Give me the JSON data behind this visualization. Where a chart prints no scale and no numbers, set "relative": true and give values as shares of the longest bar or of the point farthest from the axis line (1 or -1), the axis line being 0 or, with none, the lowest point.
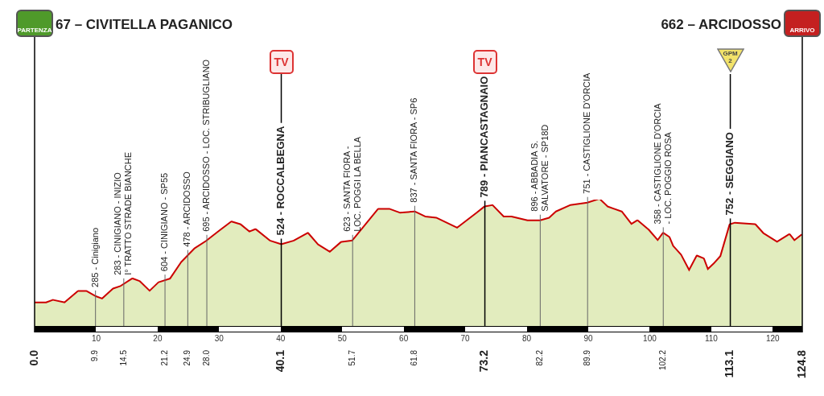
{
  "chart_data": {
    "type": "area",
    "relative": true,
    "marker": "none",
    "legend": false,
    "grid": false,
    "x": [
      0,
      1.9,
      3.0,
      4.9,
      7.1,
      8.4,
      9.9,
      11.0,
      12.8,
      14.0,
      15.9,
      17.0,
      18.7,
      20.2,
      22.1,
      23.9,
      26.1,
      28.0,
      30.1,
      32.0,
      33.4,
      34.9,
      35.9,
      38.2,
      40.1,
      42.2,
      44.4,
      46.0,
      48.0,
      49.9,
      51.7,
      55.9,
      57.7,
      59.4,
      61.8,
      63.5,
      65.3,
      68.7,
      71.9,
      73.2,
      74.4,
      76.2,
      77.5,
      80.1,
      82.2,
      83.7,
      84.8,
      87.1,
      89.9,
      91.8,
      93.1,
      95.4,
      97.0,
      98.0,
      99.7,
      101.3,
      102.2,
      103.1,
      103.7,
      105.0,
      106.4,
      107.7,
      108.7,
      109.4,
      110.5,
      111.6,
      113.1,
      113.8,
      117.1,
      118.4,
      120.7,
      122.7,
      123.5,
      124.8
    ],
    "series": [
      {
        "color": "#e2ecbe",
        "values": [
          0.18,
          0.18,
          0.2,
          0.18,
          0.27,
          0.27,
          0.23,
          0.21,
          0.29,
          0.31,
          0.37,
          0.35,
          0.27,
          0.34,
          0.37,
          0.5,
          0.61,
          0.67,
          0.75,
          0.82,
          0.8,
          0.74,
          0.76,
          0.67,
          0.64,
          0.67,
          0.73,
          0.64,
          0.58,
          0.66,
          0.67,
          0.92,
          0.92,
          0.89,
          0.9,
          0.86,
          0.85,
          0.77,
          0.89,
          0.94,
          0.95,
          0.86,
          0.86,
          0.83,
          0.83,
          0.85,
          0.9,
          0.95,
          0.97,
          1,
          0.94,
          0.9,
          0.8,
          0.83,
          0.76,
          0.67,
          0.73,
          0.7,
          0.63,
          0.56,
          0.43,
          0.55,
          0.53,
          0.44,
          0.49,
          0.55,
          0.8,
          0.81,
          0.8,
          0.73,
          0.66,
          0.72,
          0.67,
          0.72
        ]
      },
      {
        "type": "line",
        "color": "#cc0000",
        "values": [
          0.18,
          0.18,
          0.2,
          0.18,
          0.27,
          0.27,
          0.23,
          0.21,
          0.29,
          0.31,
          0.37,
          0.35,
          0.27,
          0.34,
          0.37,
          0.5,
          0.61,
          0.67,
          0.75,
          0.82,
          0.8,
          0.74,
          0.76,
          0.67,
          0.64,
          0.67,
          0.73,
          0.64,
          0.58,
          0.66,
          0.67,
          0.92,
          0.92,
          0.89,
          0.9,
          0.86,
          0.85,
          0.77,
          0.89,
          0.94,
          0.95,
          0.86,
          0.86,
          0.83,
          0.83,
          0.85,
          0.9,
          0.95,
          0.97,
          1,
          0.94,
          0.9,
          0.8,
          0.83,
          0.76,
          0.67,
          0.73,
          0.7,
          0.63,
          0.56,
          0.43,
          0.55,
          0.53,
          0.44,
          0.49,
          0.55,
          0.8,
          0.81,
          0.8,
          0.73,
          0.66,
          0.72,
          0.67,
          0.72
        ]
      }
    ],
    "xlim": [
      0,
      124.8
    ],
    "xticks": [
      10,
      20,
      30,
      40,
      50,
      60,
      70,
      80,
      90,
      100,
      110,
      120
    ],
    "ref_lines": [
      {
        "axis": "x",
        "value": 0,
        "label": "67 – CIVITELLA PAGANICO",
        "color": "#000000"
      },
      {
        "axis": "x",
        "value": 9.9,
        "label": "285 - Cinigiano",
        "color": "#666666"
      },
      {
        "axis": "x",
        "value": 14.5,
        "label": "283 - CINIGIANO - INIZIO\nI° TRATTO STRADE BIANCHE",
        "color": "#666666"
      },
      {
        "axis": "x",
        "value": 21.2,
        "label": "604 - CINIGIANO - SP55",
        "color": "#666666"
      },
      {
        "axis": "x",
        "value": 24.9,
        "label": "478 - ARCIDOSSO",
        "color": "#666666"
      },
      {
        "axis": "x",
        "value": 28.0,
        "label": "695 - ARCIDOSSO - LOC. STRIBUGLIANO",
        "color": "#666666"
      },
      {
        "axis": "x",
        "value": 40.1,
        "label": "524 - ROCCALBEGNA",
        "color": "#000000"
      },
      {
        "axis": "x",
        "value": 51.7,
        "label": "623 - SANTA FIORA -\nLOC. POGGI LA BELLA",
        "color": "#666666"
      },
      {
        "axis": "x",
        "value": 61.8,
        "label": "837 - SANTA FIORA - SP6",
        "color": "#666666"
      },
      {
        "axis": "x",
        "value": 73.2,
        "label": "789 - PIANCASTAGNAIO",
        "color": "#000000"
      },
      {
        "axis": "x",
        "value": 82.2,
        "label": "896 - ABBADIA S.\nSALVATORE - SP18D",
        "color": "#666666"
      },
      {
        "axis": "x",
        "value": 89.9,
        "label": "751 - CASTIGLIONE D'ORCIA",
        "color": "#666666"
      },
      {
        "axis": "x",
        "value": 102.2,
        "label": "358 - CASTIGLIONE D'ORCIA\n- LOC. POGGIO ROSA",
        "color": "#666666"
      },
      {
        "axis": "x",
        "value": 113.1,
        "label": "752 - SEGGIANO",
        "color": "#000000"
      },
      {
        "axis": "x",
        "value": 124.8,
        "label": "662 – ARCIDOSSO",
        "color": "#000000"
      }
    ],
    "annotations": [
      "PARTENZA",
      "TV",
      "TV",
      "GPM 2",
      "ARRIVO",
      "0.0",
      "9.9",
      "14.5",
      "21.2",
      "24.9",
      "28.0",
      "40.1",
      "51.7",
      "61.8",
      "73.2",
      "82.2",
      "89.9",
      "102.2",
      "113.1",
      "124.8"
    ]
  }
}
